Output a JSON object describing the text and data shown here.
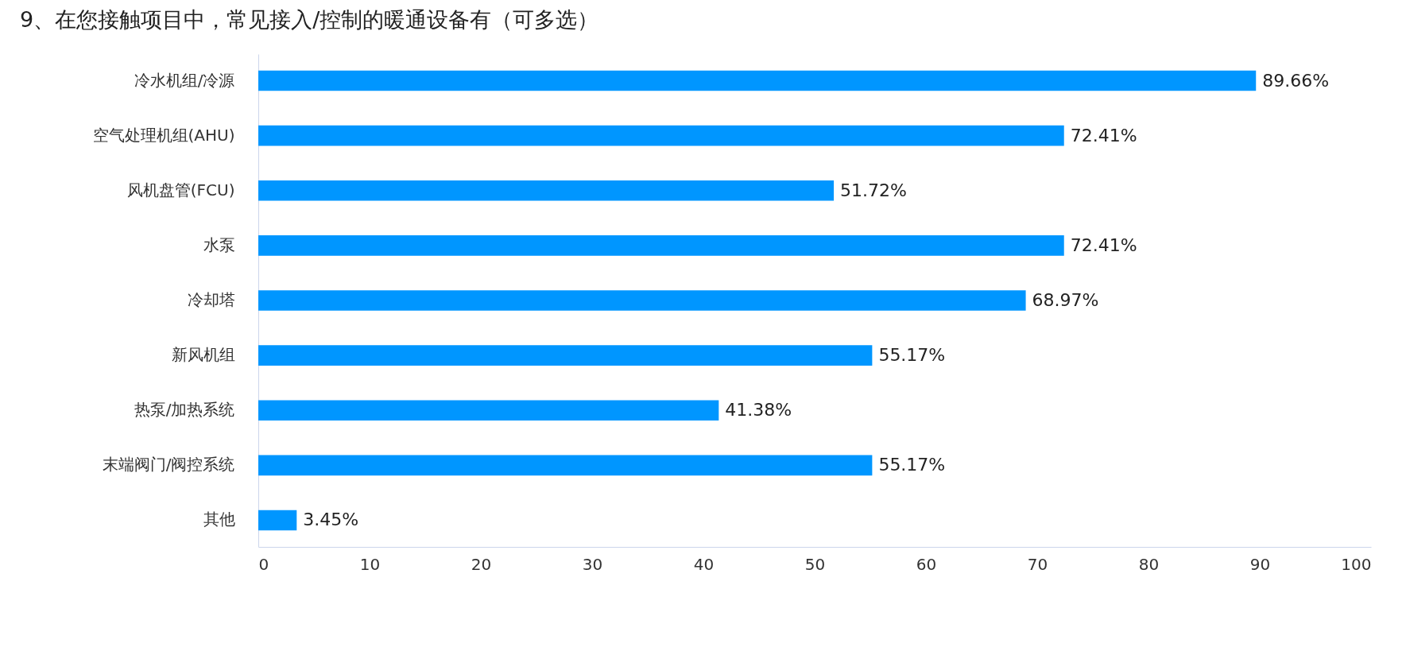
{
  "chart_data": {
    "type": "bar",
    "orientation": "horizontal",
    "title": "9、在您接触项目中，常见接入/控制的暖通设备有（可多选）",
    "categories": [
      "冷水机组/冷源",
      "空气处理机组(AHU)",
      "风机盘管(FCU)",
      "水泵",
      "冷却塔",
      "新风机组",
      "热泵/加热系统",
      "末端阀门/阀控系统",
      "其他"
    ],
    "values": [
      89.66,
      72.41,
      51.72,
      72.41,
      68.97,
      55.17,
      41.38,
      55.17,
      3.45
    ],
    "value_labels": [
      "89.66%",
      "72.41%",
      "51.72%",
      "72.41%",
      "68.97%",
      "55.17%",
      "41.38%",
      "55.17%",
      "3.45%"
    ],
    "color": "#0096ff",
    "xlim": [
      0,
      100
    ],
    "xticks": [
      0,
      10,
      20,
      30,
      40,
      50,
      60,
      70,
      80,
      90,
      100
    ],
    "grid": false
  }
}
